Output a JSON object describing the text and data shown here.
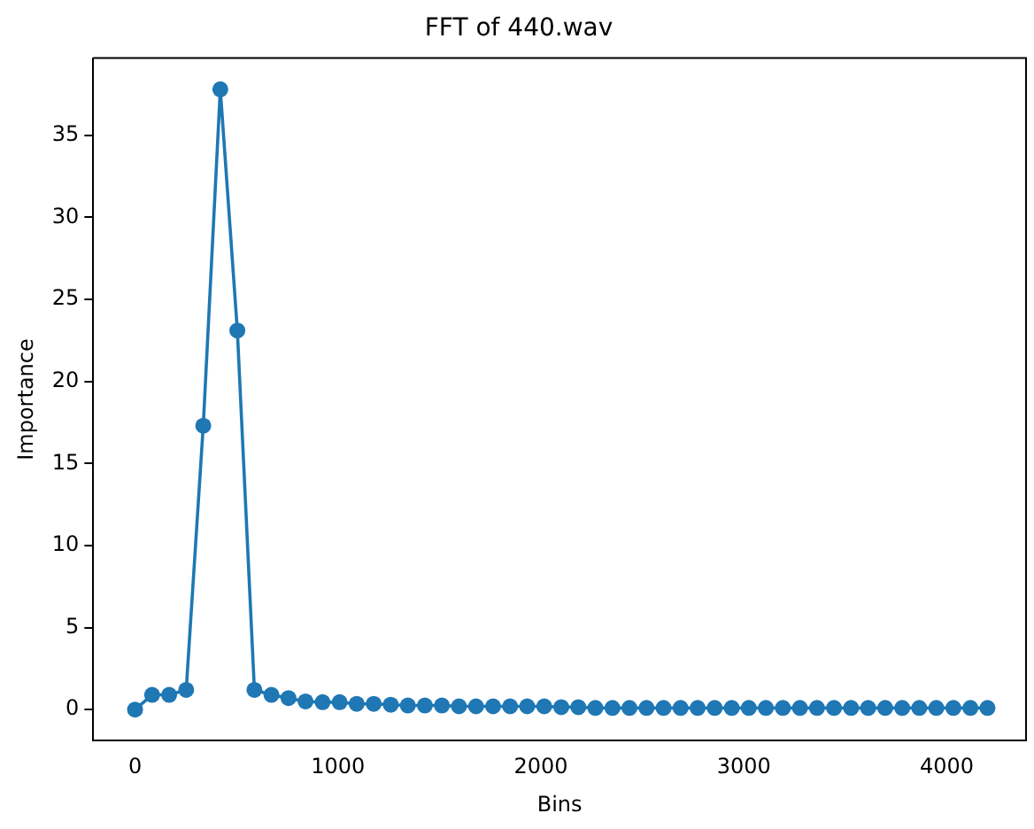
{
  "chart_data": {
    "type": "line",
    "title": "FFT of 440.wav",
    "xlabel": "Bins",
    "ylabel": "Importance",
    "x": [
      0,
      84,
      168,
      252,
      336,
      420,
      504,
      588,
      672,
      756,
      840,
      924,
      1008,
      1092,
      1176,
      1260,
      1344,
      1428,
      1512,
      1596,
      1680,
      1764,
      1848,
      1932,
      2016,
      2100,
      2184,
      2268,
      2352,
      2436,
      2520,
      2604,
      2688,
      2772,
      2856,
      2940,
      3024,
      3108,
      3192,
      3276,
      3360,
      3444,
      3528,
      3612,
      3696,
      3780,
      3864,
      3948,
      4032,
      4116,
      4200
    ],
    "series": [
      {
        "color": "#1f77b4",
        "values": [
          0,
          0.9,
          0.9,
          1.2,
          17.3,
          37.8,
          23.1,
          1.2,
          0.9,
          0.7,
          0.5,
          0.45,
          0.45,
          0.35,
          0.35,
          0.3,
          0.25,
          0.25,
          0.25,
          0.2,
          0.2,
          0.2,
          0.2,
          0.2,
          0.2,
          0.15,
          0.15,
          0.1,
          0.1,
          0.1,
          0.1,
          0.1,
          0.1,
          0.1,
          0.1,
          0.1,
          0.1,
          0.1,
          0.1,
          0.1,
          0.1,
          0.1,
          0.1,
          0.1,
          0.1,
          0.1,
          0.1,
          0.1,
          0.1,
          0.1,
          0.1
        ]
      }
    ],
    "xlim": [
      -206,
      4390
    ],
    "xticks": [
      0,
      1000,
      2000,
      3000,
      4000
    ],
    "ylim": [
      -1.9,
      39.7
    ],
    "yticks": [
      0,
      5,
      10,
      15,
      20,
      25,
      30,
      35
    ],
    "grid": false,
    "legend": false,
    "marker": "circle",
    "line_style": "solid"
  }
}
